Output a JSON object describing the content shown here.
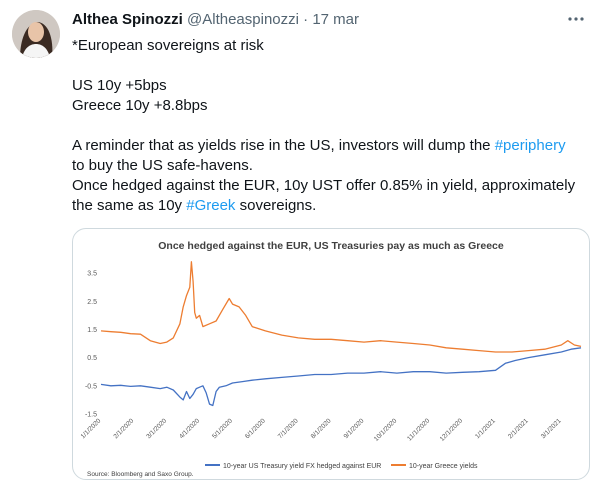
{
  "tweet": {
    "author_name": "Althea Spinozzi",
    "handle": "@Altheaspinozzi",
    "separator": "·",
    "date": "17 mar",
    "more_icon": "ellipsis-icon",
    "lines": {
      "l1": "*European sovereigns at risk",
      "l2": "US 10y +5bps",
      "l3": "Greece 10y +8.8bps",
      "l4a": "A reminder that as yields rise in the US, investors will dump the ",
      "l4link": "#periphery",
      "l5": "to buy the US safe-havens.",
      "l6": "Once hedged against the EUR, 10y UST offer 0.85% in yield, approximately",
      "l7a": "the same as 10y ",
      "l7link": "#Greek",
      "l7b": " sovereigns."
    },
    "link_color": "#1d9bf0"
  },
  "chart_data": {
    "type": "line",
    "title": "Once hedged against the EUR, US Treasuries pay as much as Greece",
    "y_ticks": [
      "3.5",
      "2.5",
      "1.5",
      "0.5",
      "-0.5",
      "-1.5"
    ],
    "ylim": [
      -1.5,
      4.0
    ],
    "x_ticks": [
      "1/1/2020",
      "2/1/2020",
      "3/1/2020",
      "4/1/2020",
      "5/1/2020",
      "6/1/2020",
      "7/1/2020",
      "8/1/2020",
      "9/1/2020",
      "10/1/2020",
      "11/1/2020",
      "12/1/2020",
      "1/1/2021",
      "2/1/2021",
      "3/1/2021"
    ],
    "xlim": [
      0,
      14.6
    ],
    "series": [
      {
        "name": "10-year US Treasury yield FX hedged against EUR",
        "color": "#4472c4",
        "x": [
          0,
          0.3,
          0.6,
          0.9,
          1.2,
          1.5,
          1.8,
          2.0,
          2.2,
          2.4,
          2.5,
          2.6,
          2.7,
          2.8,
          2.9,
          3.0,
          3.1,
          3.2,
          3.3,
          3.4,
          3.5,
          3.6,
          3.8,
          4.0,
          4.3,
          4.6,
          5.0,
          5.5,
          6.0,
          6.5,
          7.0,
          7.5,
          8.0,
          8.5,
          9.0,
          9.5,
          10.0,
          10.5,
          11.0,
          11.5,
          12.0,
          12.3,
          12.6,
          13.0,
          13.5,
          14.0,
          14.3,
          14.6
        ],
        "y": [
          -0.45,
          -0.5,
          -0.48,
          -0.52,
          -0.5,
          -0.55,
          -0.6,
          -0.55,
          -0.65,
          -0.9,
          -1.0,
          -0.7,
          -0.95,
          -0.8,
          -0.6,
          -0.55,
          -0.5,
          -0.75,
          -1.15,
          -1.2,
          -0.7,
          -0.55,
          -0.5,
          -0.4,
          -0.35,
          -0.3,
          -0.25,
          -0.2,
          -0.15,
          -0.1,
          -0.1,
          -0.05,
          -0.05,
          0.0,
          -0.05,
          0.0,
          0.0,
          -0.05,
          -0.02,
          0.0,
          0.05,
          0.3,
          0.4,
          0.5,
          0.6,
          0.7,
          0.8,
          0.85
        ]
      },
      {
        "name": "10-year Greece yields",
        "color": "#ed7d31",
        "x": [
          0,
          0.3,
          0.6,
          0.9,
          1.2,
          1.5,
          1.8,
          2.0,
          2.2,
          2.4,
          2.5,
          2.6,
          2.7,
          2.75,
          2.8,
          2.85,
          2.9,
          3.0,
          3.1,
          3.3,
          3.5,
          3.7,
          3.9,
          4.0,
          4.2,
          4.4,
          4.6,
          5.0,
          5.5,
          6.0,
          6.5,
          7.0,
          7.5,
          8.0,
          8.5,
          9.0,
          9.5,
          10.0,
          10.5,
          11.0,
          11.5,
          12.0,
          12.5,
          13.0,
          13.5,
          14.0,
          14.2,
          14.4,
          14.6
        ],
        "y": [
          1.45,
          1.42,
          1.4,
          1.35,
          1.33,
          1.1,
          1.0,
          1.05,
          1.2,
          1.7,
          2.3,
          2.7,
          3.0,
          3.9,
          3.2,
          2.1,
          1.9,
          2.0,
          1.6,
          1.7,
          1.8,
          2.2,
          2.6,
          2.4,
          2.3,
          2.0,
          1.6,
          1.45,
          1.3,
          1.2,
          1.15,
          1.15,
          1.1,
          1.05,
          1.1,
          1.05,
          1.0,
          0.95,
          0.85,
          0.8,
          0.75,
          0.7,
          0.7,
          0.75,
          0.8,
          0.95,
          1.1,
          0.95,
          0.9
        ]
      }
    ],
    "source": "Source: Bloomberg and Saxo Group."
  }
}
